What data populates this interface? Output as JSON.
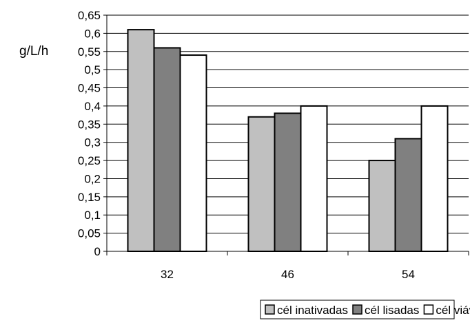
{
  "chart_data": {
    "type": "bar",
    "ylabel": "g/L/h",
    "xlabel": "",
    "categories": [
      "32",
      "46",
      "54"
    ],
    "ylim": [
      0,
      0.65
    ],
    "ytick_step": 0.05,
    "ytick_labels": [
      "0",
      "0,05",
      "0,1",
      "0,15",
      "0,2",
      "0,25",
      "0,3",
      "0,35",
      "0,4",
      "0,45",
      "0,5",
      "0,55",
      "0,6",
      "0,65"
    ],
    "grid": true,
    "legend_position": "bottom",
    "series": [
      {
        "name": "cél inativadas",
        "color": "#c0c0c0",
        "values": [
          0.61,
          0.37,
          0.25
        ]
      },
      {
        "name": "cél lisadas",
        "color": "#808080",
        "values": [
          0.56,
          0.38,
          0.31
        ]
      },
      {
        "name": "cél viáveis",
        "color": "#ffffff",
        "values": [
          0.54,
          0.4,
          0.4
        ]
      }
    ]
  }
}
